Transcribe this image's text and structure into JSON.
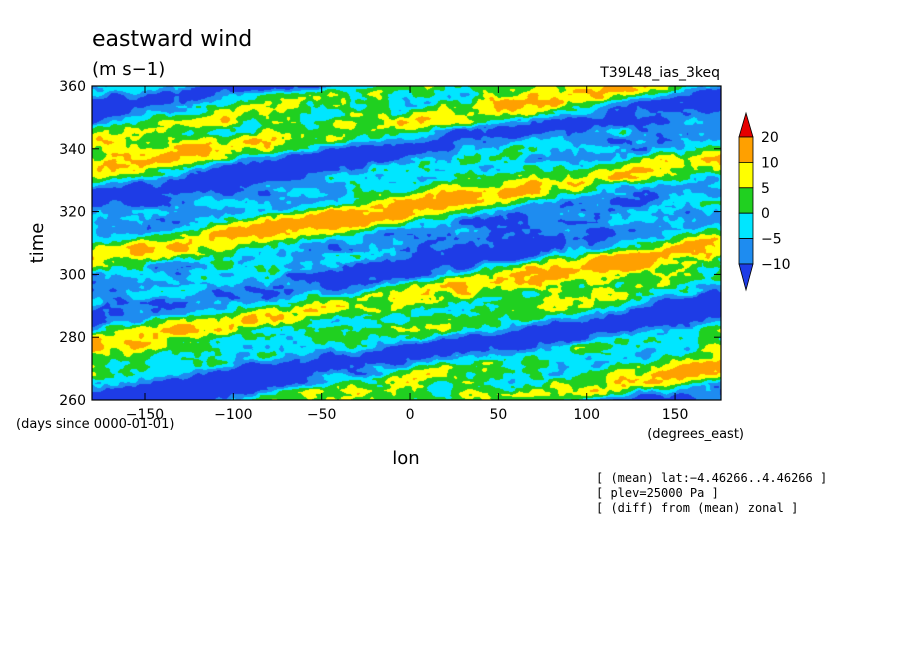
{
  "chart_data": {
    "type": "heatmap",
    "title": "eastward wind",
    "units": "(m s−1)",
    "run_label": "T39L48_ias_3keq",
    "xlabel": "lon",
    "ylabel": "time",
    "x_units": "(degrees_east)",
    "y_units": "(days since 0000-01-01)",
    "xlim": [
      -180,
      176
    ],
    "ylim": [
      260,
      360
    ],
    "x_ticks": [
      -150,
      -100,
      -50,
      0,
      50,
      100,
      150
    ],
    "x_tick_labels": [
      "−150",
      "−100",
      "−50",
      "0",
      "50",
      "100",
      "150"
    ],
    "y_ticks": [
      260,
      280,
      300,
      320,
      340,
      360
    ],
    "y_tick_labels": [
      "260",
      "280",
      "300",
      "320",
      "340",
      "360"
    ],
    "contour_levels": [
      -10,
      -5,
      0,
      5,
      10,
      20
    ],
    "colorbar_labels": [
      "20",
      "10",
      "5",
      "0",
      "−5",
      "−10"
    ],
    "colors": [
      "#1e3ce6",
      "#1e8cf0",
      "#00e6ff",
      "#20d020",
      "#ffff00",
      "#ffa000",
      "#e60000"
    ],
    "grid": false,
    "notes": [
      "[ (mean) lat:−4.46266..4.46266 ]",
      "[ plev=25000 Pa ]",
      "[ (diff) from (mean) zonal ]"
    ]
  }
}
